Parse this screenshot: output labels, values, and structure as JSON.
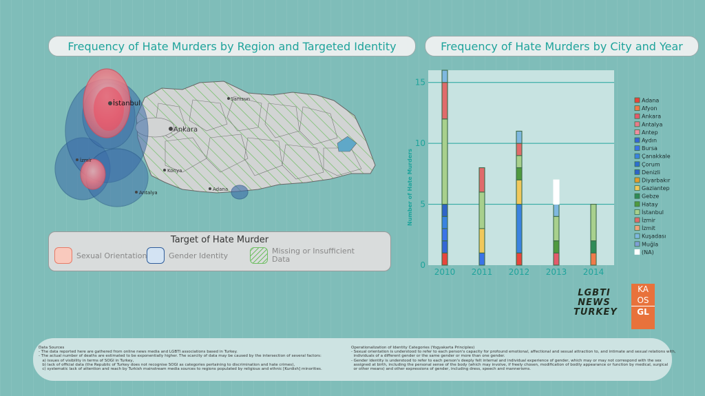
{
  "left_title": "Frequency of Hate Murders by Region and Targeted Identity",
  "right_title": "Frequency of Hate Murders by City and Year",
  "map": {
    "city_labels": [
      "İstanbul",
      "Ankara",
      "Samsun",
      "İzmir",
      "Konya",
      "Antalya",
      "Adana"
    ]
  },
  "map_legend": {
    "title": "Target of Hate Murder",
    "items": [
      {
        "label": "Sexual Orientation",
        "color": "#f9c9bd",
        "border": "#e67a66"
      },
      {
        "label": "Gender Identity",
        "color": "#d3e3f3",
        "border": "#2e5c9a"
      },
      {
        "label": "Missing or Insufficient Data",
        "color": "#d9dcdc",
        "border": "#6fbf63"
      }
    ]
  },
  "chart_data": {
    "type": "bar",
    "stacked": true,
    "ylabel": "Number of Hate Murders",
    "xlabel": "",
    "categories": [
      "2010",
      "2011",
      "2012",
      "2013",
      "2014"
    ],
    "ylim": [
      0,
      16
    ],
    "yticks": [
      0,
      5,
      10,
      15
    ],
    "grid": true,
    "legend_position": "right",
    "series": [
      {
        "name": "Adana",
        "color": "#e8453c",
        "values": [
          1,
          0,
          1,
          0,
          0
        ]
      },
      {
        "name": "Afyon",
        "color": "#f07a4a",
        "values": [
          0,
          0,
          0,
          0,
          1
        ]
      },
      {
        "name": "Ankara",
        "color": "#e45a6b",
        "values": [
          0,
          0,
          0,
          1,
          0
        ]
      },
      {
        "name": "Antalya",
        "color": "#ea7c8a",
        "values": [
          0,
          0,
          0,
          0,
          0
        ]
      },
      {
        "name": "Antep",
        "color": "#f08fa0",
        "values": [
          0,
          0,
          0,
          0,
          0
        ]
      },
      {
        "name": "Aydın",
        "color": "#3566d6",
        "values": [
          1,
          0,
          0,
          0,
          0
        ]
      },
      {
        "name": "Bursa",
        "color": "#3b74e8",
        "values": [
          1,
          1,
          0,
          0,
          0
        ]
      },
      {
        "name": "Çanakkale",
        "color": "#3a83e0",
        "values": [
          1,
          0,
          4,
          0,
          0
        ]
      },
      {
        "name": "Çorum",
        "color": "#2d6fd0",
        "values": [
          0,
          0,
          0,
          0,
          0
        ]
      },
      {
        "name": "Denizli",
        "color": "#2f64c8",
        "values": [
          1,
          0,
          0,
          0,
          0
        ]
      },
      {
        "name": "Diyarbakır",
        "color": "#e39b2e",
        "values": [
          0,
          0,
          0,
          0,
          0
        ]
      },
      {
        "name": "Gaziantep",
        "color": "#f0c85c",
        "values": [
          0,
          2,
          2,
          0,
          0
        ]
      },
      {
        "name": "Gebze",
        "color": "#2e8b57",
        "values": [
          0,
          0,
          0,
          0,
          1
        ]
      },
      {
        "name": "Hatay",
        "color": "#4f9a3f",
        "values": [
          0,
          0,
          1,
          1,
          0
        ]
      },
      {
        "name": "İstanbul",
        "color": "#a8d08d",
        "values": [
          7,
          3,
          1,
          2,
          3
        ]
      },
      {
        "name": "İzmir",
        "color": "#e06b6b",
        "values": [
          3,
          2,
          1,
          0,
          0
        ]
      },
      {
        "name": "İzmit",
        "color": "#f0a37a",
        "values": [
          0,
          0,
          0,
          0,
          0
        ]
      },
      {
        "name": "Kuşadası",
        "color": "#7fb8e0",
        "values": [
          1,
          0,
          1,
          1,
          0
        ]
      },
      {
        "name": "Muğla",
        "color": "#7f9fd6",
        "values": [
          0,
          0,
          0,
          0,
          0
        ]
      },
      {
        "name": "(NA)",
        "color": "#ffffff",
        "values": [
          0,
          0,
          0,
          2,
          0
        ]
      }
    ]
  },
  "footer": {
    "left": "Data Sources\n- The data reported here are gathered from online news media and LGBTI associations based in Turkey.\n- The actual number of deaths are estimated to be exponentially higher. The scarcity of data may be caused by the intersection of several factors:\n   a) issues of visibility in terms of SOGI in Turkey,\n   b) lack of official data (the Republic of Turkey does not recognise SOGI as categories pertaining to discrimination and hate crimes),\n   c) systematic lack of attention and reach by Turkish mainstream media sources to regions populated by religious and ethnic [Kurdish] minorities.",
    "right": "Operationalization of Identity Categories (Yogyakarta Principles)\n- Sexual orientation is understood to refer to each person's capacity for profound emotional, affectional and sexual attraction to, and intimate and sexual relations with,\n  individuals of a different gender or the same gender or more than one gender.\n- Gender identity is understood to refer to each person's deeply felt internal and individual experience of gender, which may or may not correspond with the sex\n  assigned at birth, including the personal sense of the body (which may involve, if freely chosen, modification of bodily appearance or function by medical, surgical\n  or other means) and other expressions of gender, including dress, speech and mannerisms."
  },
  "logos": {
    "lgbti": "LGBTI NEWS TURKEY",
    "kaos_lines": [
      "KA",
      "OS",
      "GL"
    ]
  }
}
